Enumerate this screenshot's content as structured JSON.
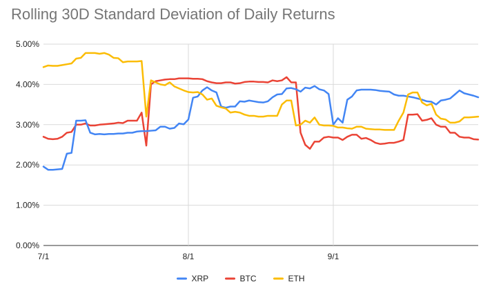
{
  "chart_data": {
    "type": "line",
    "title": "Rolling 30D Standard Deviation of Daily Returns",
    "xlabel": "",
    "ylabel": "",
    "x_range": [
      "7/1",
      "9/30"
    ],
    "ylim": [
      0,
      0.05
    ],
    "y_ticks": [
      {
        "value": 0,
        "label": "0.00%"
      },
      {
        "value": 0.01,
        "label": "1.00%"
      },
      {
        "value": 0.02,
        "label": "2.00%"
      },
      {
        "value": 0.03,
        "label": "3.00%"
      },
      {
        "value": 0.04,
        "label": "4.00%"
      },
      {
        "value": 0.05,
        "label": "5.00%"
      }
    ],
    "x_ticks": [
      {
        "day": 0,
        "label": "7/1"
      },
      {
        "day": 31,
        "label": "8/1"
      },
      {
        "day": 62,
        "label": "9/1"
      }
    ],
    "grid": "horizontal and month verticals",
    "legend_position": "bottom",
    "series": [
      {
        "name": "XRP",
        "color": "#4285f4",
        "points": [
          [
            0,
            0.0196
          ],
          [
            1,
            0.0188
          ],
          [
            2,
            0.0188
          ],
          [
            3,
            0.0189
          ],
          [
            4,
            0.019
          ],
          [
            5,
            0.0228
          ],
          [
            6,
            0.023
          ],
          [
            7,
            0.031
          ],
          [
            8,
            0.031
          ],
          [
            9,
            0.0311
          ],
          [
            10,
            0.028
          ],
          [
            11,
            0.0276
          ],
          [
            12,
            0.0277
          ],
          [
            13,
            0.0276
          ],
          [
            14,
            0.0277
          ],
          [
            15,
            0.0277
          ],
          [
            16,
            0.0278
          ],
          [
            17,
            0.0278
          ],
          [
            18,
            0.028
          ],
          [
            19,
            0.028
          ],
          [
            20,
            0.0283
          ],
          [
            21,
            0.0284
          ],
          [
            22,
            0.0284
          ],
          [
            23,
            0.0285
          ],
          [
            24,
            0.0286
          ],
          [
            25,
            0.0295
          ],
          [
            26,
            0.0295
          ],
          [
            27,
            0.029
          ],
          [
            28,
            0.0292
          ],
          [
            29,
            0.0303
          ],
          [
            30,
            0.0301
          ],
          [
            31,
            0.0313
          ],
          [
            32,
            0.0367
          ],
          [
            33,
            0.037
          ],
          [
            34,
            0.0385
          ],
          [
            35,
            0.0393
          ],
          [
            36,
            0.0385
          ],
          [
            37,
            0.038
          ],
          [
            38,
            0.0345
          ],
          [
            39,
            0.0342
          ],
          [
            40,
            0.0345
          ],
          [
            41,
            0.0345
          ],
          [
            42,
            0.0358
          ],
          [
            43,
            0.0357
          ],
          [
            44,
            0.036
          ],
          [
            45,
            0.0358
          ],
          [
            46,
            0.0356
          ],
          [
            47,
            0.0355
          ],
          [
            48,
            0.0358
          ],
          [
            49,
            0.0368
          ],
          [
            50,
            0.0375
          ],
          [
            51,
            0.0376
          ],
          [
            52,
            0.039
          ],
          [
            53,
            0.0391
          ],
          [
            54,
            0.0388
          ],
          [
            55,
            0.0382
          ],
          [
            56,
            0.0392
          ],
          [
            57,
            0.039
          ],
          [
            58,
            0.0396
          ],
          [
            59,
            0.0388
          ],
          [
            60,
            0.0385
          ],
          [
            61,
            0.0376
          ],
          [
            62,
            0.03
          ],
          [
            63,
            0.0316
          ],
          [
            64,
            0.0305
          ],
          [
            65,
            0.0362
          ],
          [
            66,
            0.037
          ],
          [
            67,
            0.0385
          ],
          [
            68,
            0.0387
          ],
          [
            69,
            0.0387
          ],
          [
            70,
            0.0387
          ],
          [
            71,
            0.0386
          ],
          [
            72,
            0.0384
          ],
          [
            73,
            0.0383
          ],
          [
            74,
            0.0382
          ],
          [
            75,
            0.0375
          ],
          [
            76,
            0.0372
          ],
          [
            77,
            0.0372
          ],
          [
            78,
            0.037
          ],
          [
            79,
            0.0368
          ],
          [
            80,
            0.0365
          ],
          [
            81,
            0.0362
          ],
          [
            82,
            0.0358
          ],
          [
            83,
            0.0357
          ],
          [
            84,
            0.035
          ],
          [
            85,
            0.036
          ],
          [
            86,
            0.0362
          ],
          [
            87,
            0.0365
          ],
          [
            88,
            0.0375
          ],
          [
            89,
            0.0385
          ],
          [
            90,
            0.0378
          ],
          [
            91,
            0.0375
          ],
          [
            92,
            0.0372
          ],
          [
            93,
            0.0368
          ]
        ]
      },
      {
        "name": "BTC",
        "color": "#ea4335",
        "points": [
          [
            0,
            0.027
          ],
          [
            1,
            0.0265
          ],
          [
            2,
            0.0264
          ],
          [
            3,
            0.0265
          ],
          [
            4,
            0.027
          ],
          [
            5,
            0.028
          ],
          [
            6,
            0.0282
          ],
          [
            7,
            0.03
          ],
          [
            8,
            0.03
          ],
          [
            9,
            0.0303
          ],
          [
            10,
            0.0298
          ],
          [
            11,
            0.0298
          ],
          [
            12,
            0.03
          ],
          [
            13,
            0.0301
          ],
          [
            14,
            0.0302
          ],
          [
            15,
            0.0303
          ],
          [
            16,
            0.0305
          ],
          [
            17,
            0.0304
          ],
          [
            18,
            0.031
          ],
          [
            19,
            0.031
          ],
          [
            20,
            0.031
          ],
          [
            21,
            0.033
          ],
          [
            22,
            0.0248
          ],
          [
            23,
            0.04
          ],
          [
            24,
            0.0408
          ],
          [
            25,
            0.041
          ],
          [
            26,
            0.0412
          ],
          [
            27,
            0.0413
          ],
          [
            28,
            0.0413
          ],
          [
            29,
            0.0415
          ],
          [
            30,
            0.0415
          ],
          [
            31,
            0.0415
          ],
          [
            32,
            0.0414
          ],
          [
            33,
            0.0414
          ],
          [
            34,
            0.0413
          ],
          [
            35,
            0.0408
          ],
          [
            36,
            0.0405
          ],
          [
            37,
            0.0403
          ],
          [
            38,
            0.0403
          ],
          [
            39,
            0.0405
          ],
          [
            40,
            0.0405
          ],
          [
            41,
            0.0402
          ],
          [
            42,
            0.0403
          ],
          [
            43,
            0.0406
          ],
          [
            44,
            0.0407
          ],
          [
            45,
            0.0407
          ],
          [
            46,
            0.0406
          ],
          [
            47,
            0.0406
          ],
          [
            48,
            0.0405
          ],
          [
            49,
            0.041
          ],
          [
            50,
            0.0408
          ],
          [
            51,
            0.041
          ],
          [
            52,
            0.0418
          ],
          [
            53,
            0.0405
          ],
          [
            54,
            0.0405
          ],
          [
            55,
            0.028
          ],
          [
            56,
            0.025
          ],
          [
            57,
            0.024
          ],
          [
            58,
            0.0258
          ],
          [
            59,
            0.0258
          ],
          [
            60,
            0.0268
          ],
          [
            61,
            0.027
          ],
          [
            62,
            0.0268
          ],
          [
            63,
            0.0268
          ],
          [
            64,
            0.0262
          ],
          [
            65,
            0.027
          ],
          [
            66,
            0.0275
          ],
          [
            67,
            0.0275
          ],
          [
            68,
            0.0265
          ],
          [
            69,
            0.0267
          ],
          [
            70,
            0.0262
          ],
          [
            71,
            0.0255
          ],
          [
            72,
            0.0252
          ],
          [
            73,
            0.0253
          ],
          [
            74,
            0.0255
          ],
          [
            75,
            0.0255
          ],
          [
            76,
            0.0258
          ],
          [
            77,
            0.0262
          ],
          [
            78,
            0.0325
          ],
          [
            79,
            0.0325
          ],
          [
            80,
            0.0326
          ],
          [
            81,
            0.031
          ],
          [
            82,
            0.0312
          ],
          [
            83,
            0.0316
          ],
          [
            84,
            0.03
          ],
          [
            85,
            0.0295
          ],
          [
            86,
            0.0295
          ],
          [
            87,
            0.028
          ],
          [
            88,
            0.028
          ],
          [
            89,
            0.027
          ],
          [
            90,
            0.0268
          ],
          [
            91,
            0.0268
          ],
          [
            92,
            0.0264
          ],
          [
            93,
            0.0263
          ]
        ]
      },
      {
        "name": "ETH",
        "color": "#fbbc04",
        "points": [
          [
            0,
            0.0443
          ],
          [
            1,
            0.0447
          ],
          [
            2,
            0.0446
          ],
          [
            3,
            0.0446
          ],
          [
            4,
            0.0448
          ],
          [
            5,
            0.045
          ],
          [
            6,
            0.0452
          ],
          [
            7,
            0.0464
          ],
          [
            8,
            0.0466
          ],
          [
            9,
            0.0478
          ],
          [
            10,
            0.0478
          ],
          [
            11,
            0.0478
          ],
          [
            12,
            0.0476
          ],
          [
            13,
            0.0478
          ],
          [
            14,
            0.0474
          ],
          [
            15,
            0.0466
          ],
          [
            16,
            0.0465
          ],
          [
            17,
            0.0455
          ],
          [
            18,
            0.0457
          ],
          [
            19,
            0.0457
          ],
          [
            20,
            0.0457
          ],
          [
            21,
            0.0458
          ],
          [
            22,
            0.032
          ],
          [
            23,
            0.041
          ],
          [
            24,
            0.0405
          ],
          [
            25,
            0.04
          ],
          [
            26,
            0.0398
          ],
          [
            27,
            0.0405
          ],
          [
            28,
            0.0395
          ],
          [
            29,
            0.039
          ],
          [
            30,
            0.0385
          ],
          [
            31,
            0.0381
          ],
          [
            32,
            0.038
          ],
          [
            33,
            0.0381
          ],
          [
            34,
            0.0375
          ],
          [
            35,
            0.0362
          ],
          [
            36,
            0.0365
          ],
          [
            37,
            0.0347
          ],
          [
            38,
            0.0343
          ],
          [
            39,
            0.034
          ],
          [
            40,
            0.033
          ],
          [
            41,
            0.0332
          ],
          [
            42,
            0.033
          ],
          [
            43,
            0.0325
          ],
          [
            44,
            0.0322
          ],
          [
            45,
            0.0322
          ],
          [
            46,
            0.032
          ],
          [
            47,
            0.032
          ],
          [
            48,
            0.0322
          ],
          [
            49,
            0.0322
          ],
          [
            50,
            0.0322
          ],
          [
            51,
            0.035
          ],
          [
            52,
            0.036
          ],
          [
            53,
            0.036
          ],
          [
            54,
            0.0298
          ],
          [
            55,
            0.03
          ],
          [
            56,
            0.031
          ],
          [
            57,
            0.0305
          ],
          [
            58,
            0.0318
          ],
          [
            59,
            0.03
          ],
          [
            60,
            0.0298
          ],
          [
            61,
            0.0298
          ],
          [
            62,
            0.0297
          ],
          [
            63,
            0.0293
          ],
          [
            64,
            0.0293
          ],
          [
            65,
            0.0291
          ],
          [
            66,
            0.029
          ],
          [
            67,
            0.0295
          ],
          [
            68,
            0.0295
          ],
          [
            69,
            0.029
          ],
          [
            70,
            0.0289
          ],
          [
            71,
            0.0288
          ],
          [
            72,
            0.0288
          ],
          [
            73,
            0.0287
          ],
          [
            74,
            0.0287
          ],
          [
            75,
            0.0287
          ],
          [
            76,
            0.031
          ],
          [
            77,
            0.033
          ],
          [
            78,
            0.0375
          ],
          [
            79,
            0.038
          ],
          [
            80,
            0.038
          ],
          [
            81,
            0.0355
          ],
          [
            82,
            0.0348
          ],
          [
            83,
            0.0352
          ],
          [
            84,
            0.0325
          ],
          [
            85,
            0.0315
          ],
          [
            86,
            0.0313
          ],
          [
            87,
            0.0305
          ],
          [
            88,
            0.0305
          ],
          [
            89,
            0.0308
          ],
          [
            90,
            0.0318
          ],
          [
            91,
            0.0318
          ],
          [
            92,
            0.0319
          ],
          [
            93,
            0.032
          ]
        ]
      }
    ]
  }
}
